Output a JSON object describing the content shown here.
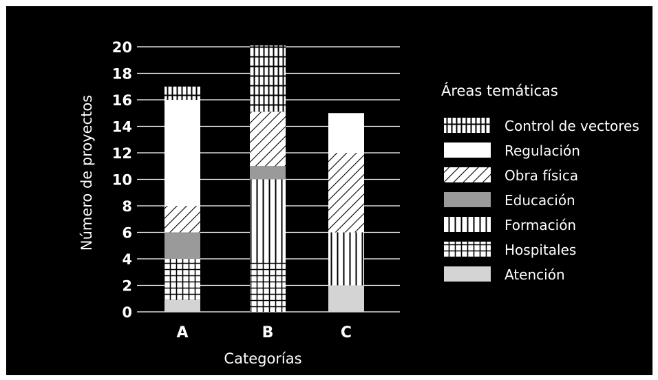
{
  "chart_data": {
    "type": "bar",
    "stacked": true,
    "title": "",
    "xlabel": "Categorías",
    "ylabel": "Número de proyectos",
    "ylim": [
      0,
      20
    ],
    "yticks": [
      0,
      2,
      4,
      6,
      8,
      10,
      12,
      14,
      16,
      18,
      20
    ],
    "grid": true,
    "categories": [
      "A",
      "B",
      "C"
    ],
    "legend_title": "Áreas temáticas",
    "legend_position": "right",
    "series": [
      {
        "name": "Atención",
        "values": [
          0.9,
          0,
          2
        ],
        "color": "#d4d4d4",
        "pattern": "solid-light"
      },
      {
        "name": "Hospitales",
        "values": [
          3.1,
          3.7,
          0
        ],
        "color": "#ffffff",
        "pattern": "grid"
      },
      {
        "name": "Formación",
        "values": [
          0,
          6.3,
          4
        ],
        "color": "#ffffff",
        "pattern": "vertical"
      },
      {
        "name": "Educación",
        "values": [
          2,
          1,
          0
        ],
        "color": "#9a9a9a",
        "pattern": "solid-gray"
      },
      {
        "name": "Obra física",
        "values": [
          2,
          4.1,
          6
        ],
        "color": "#ffffff",
        "pattern": "diagonal"
      },
      {
        "name": "Regulación",
        "values": [
          8,
          0,
          3
        ],
        "color": "#ffffff",
        "pattern": "solid-white"
      },
      {
        "name": "Control de vectores",
        "values": [
          1,
          5,
          0
        ],
        "color": "#ffffff",
        "pattern": "vectors"
      }
    ]
  }
}
